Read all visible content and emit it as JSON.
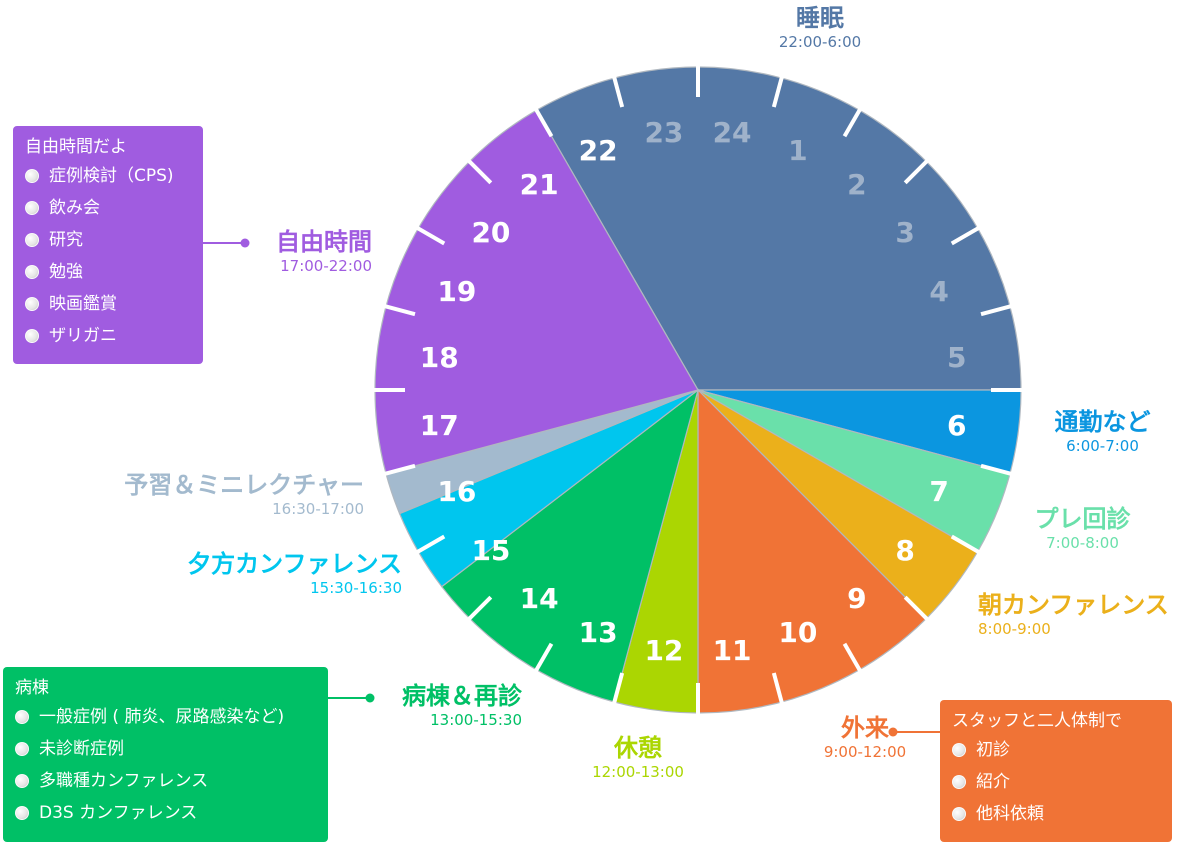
{
  "chart_data": {
    "type": "pie",
    "hours": [
      "1",
      "2",
      "3",
      "4",
      "5",
      "6",
      "7",
      "8",
      "9",
      "10",
      "11",
      "12",
      "13",
      "14",
      "15",
      "16",
      "17",
      "18",
      "19",
      "20",
      "21",
      "22",
      "23",
      "24"
    ],
    "segments": [
      {
        "name": "睡眠",
        "time": "22:00-6:00",
        "start": 22,
        "end": 30,
        "color": "#5478a6"
      },
      {
        "name": "通勤など",
        "time": "6:00-7:00",
        "start": 6,
        "end": 7,
        "color": "#0b96e0"
      },
      {
        "name": "プレ回診",
        "time": "7:00-8:00",
        "start": 7,
        "end": 8,
        "color": "#6ae0aa"
      },
      {
        "name": "朝カンファレンス",
        "time": "8:00-9:00",
        "start": 8,
        "end": 9,
        "color": "#ebb01b"
      },
      {
        "name": "外来",
        "time": "9:00-12:00",
        "start": 9,
        "end": 12,
        "color": "#f07336"
      },
      {
        "name": "休憩",
        "time": "12:00-13:00",
        "start": 12,
        "end": 13,
        "color": "#abd602"
      },
      {
        "name": "病棟＆再診",
        "time": "13:00-15:30",
        "start": 13,
        "end": 15.5,
        "color": "#00c066"
      },
      {
        "name": "夕方カンファレンス",
        "time": "15:30-16:30",
        "start": 15.5,
        "end": 16.5,
        "color": "#00c6ee"
      },
      {
        "name": "予習＆ミニレクチャー",
        "time": "16:30-17:00",
        "start": 16.5,
        "end": 17,
        "color": "#a3bace"
      },
      {
        "name": "自由時間",
        "time": "17:00-22:00",
        "start": 17,
        "end": 22,
        "color": "#a05ce0"
      }
    ]
  },
  "labels": {
    "sleep": {
      "name": "睡眠",
      "time": "22:00-6:00"
    },
    "commute": {
      "name": "通勤など",
      "time": "6:00-7:00"
    },
    "pre_round": {
      "name": "プレ回診",
      "time": "7:00-8:00"
    },
    "morning_conf": {
      "name": "朝カンファレンス",
      "time": "8:00-9:00"
    },
    "outpatient": {
      "name": "外来",
      "time": "9:00-12:00"
    },
    "break": {
      "name": "休憩",
      "time": "12:00-13:00"
    },
    "ward": {
      "name": "病棟＆再診",
      "time": "13:00-15:30"
    },
    "evening_conf": {
      "name": "夕方カンファレンス",
      "time": "15:30-16:30"
    },
    "lecture": {
      "name": "予習＆ミニレクチャー",
      "time": "16:30-17:00"
    },
    "free": {
      "name": "自由時間",
      "time": "17:00-22:00"
    }
  },
  "boxes": {
    "free": {
      "title": "自由時間だよ",
      "items": [
        "症例検討（CPS)",
        "飲み会",
        "研究",
        "勉強",
        "映画鑑賞",
        "ザリガニ"
      ],
      "color": "#a05ce0"
    },
    "ward": {
      "title": "病棟",
      "items": [
        "一般症例 ( 肺炎、尿路感染など)",
        "未診断症例",
        "多職種カンファレンス",
        "D3S カンファレンス"
      ],
      "color": "#00c066"
    },
    "outpatient": {
      "title": "スタッフと二人体制で",
      "items": [
        "初診",
        "紹介",
        "他科依頼"
      ],
      "color": "#f07336"
    }
  }
}
